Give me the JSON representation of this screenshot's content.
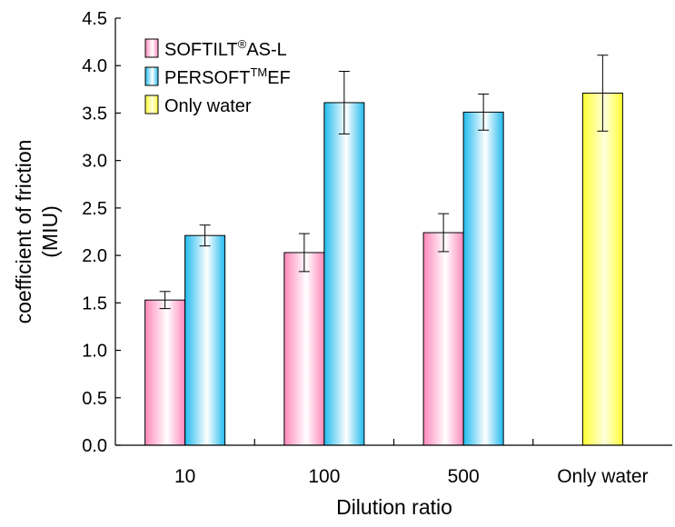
{
  "chart_data": {
    "type": "bar",
    "title": "",
    "xlabel": "Dilution ratio",
    "ylabel_line1": "coefficient of friction",
    "ylabel_line2": "(MIU)",
    "ylim": [
      0,
      4.5
    ],
    "ytick_step": 0.5,
    "yticks": [
      "0.0",
      "0.5",
      "1.0",
      "1.5",
      "2.0",
      "2.5",
      "3.0",
      "3.5",
      "4.0",
      "4.5"
    ],
    "categories": [
      "10",
      "100",
      "500",
      "Only water"
    ],
    "grid": false,
    "legend_position": "top-left",
    "error_bars": true,
    "series": [
      {
        "name": "SOFTILT®AS-L",
        "legend_base": "SOFTILT",
        "legend_sup": "®",
        "legend_tail": "AS-L",
        "color": "#ff99cc",
        "values": [
          1.53,
          2.03,
          2.24,
          null
        ],
        "errors": [
          0.09,
          0.2,
          0.2,
          null
        ]
      },
      {
        "name": "PERSOFT™EF",
        "legend_base": "PERSOFT",
        "legend_sup": "TM",
        "legend_tail": "EF",
        "color": "#33ccff",
        "values": [
          2.21,
          3.61,
          3.51,
          null
        ],
        "errors": [
          0.11,
          0.33,
          0.19,
          null
        ]
      },
      {
        "name": "Only water",
        "legend_base": "Only water",
        "legend_sup": "",
        "legend_tail": "",
        "color": "#ffff33",
        "values": [
          null,
          null,
          null,
          3.71
        ],
        "errors": [
          null,
          null,
          null,
          0.4
        ]
      }
    ]
  }
}
